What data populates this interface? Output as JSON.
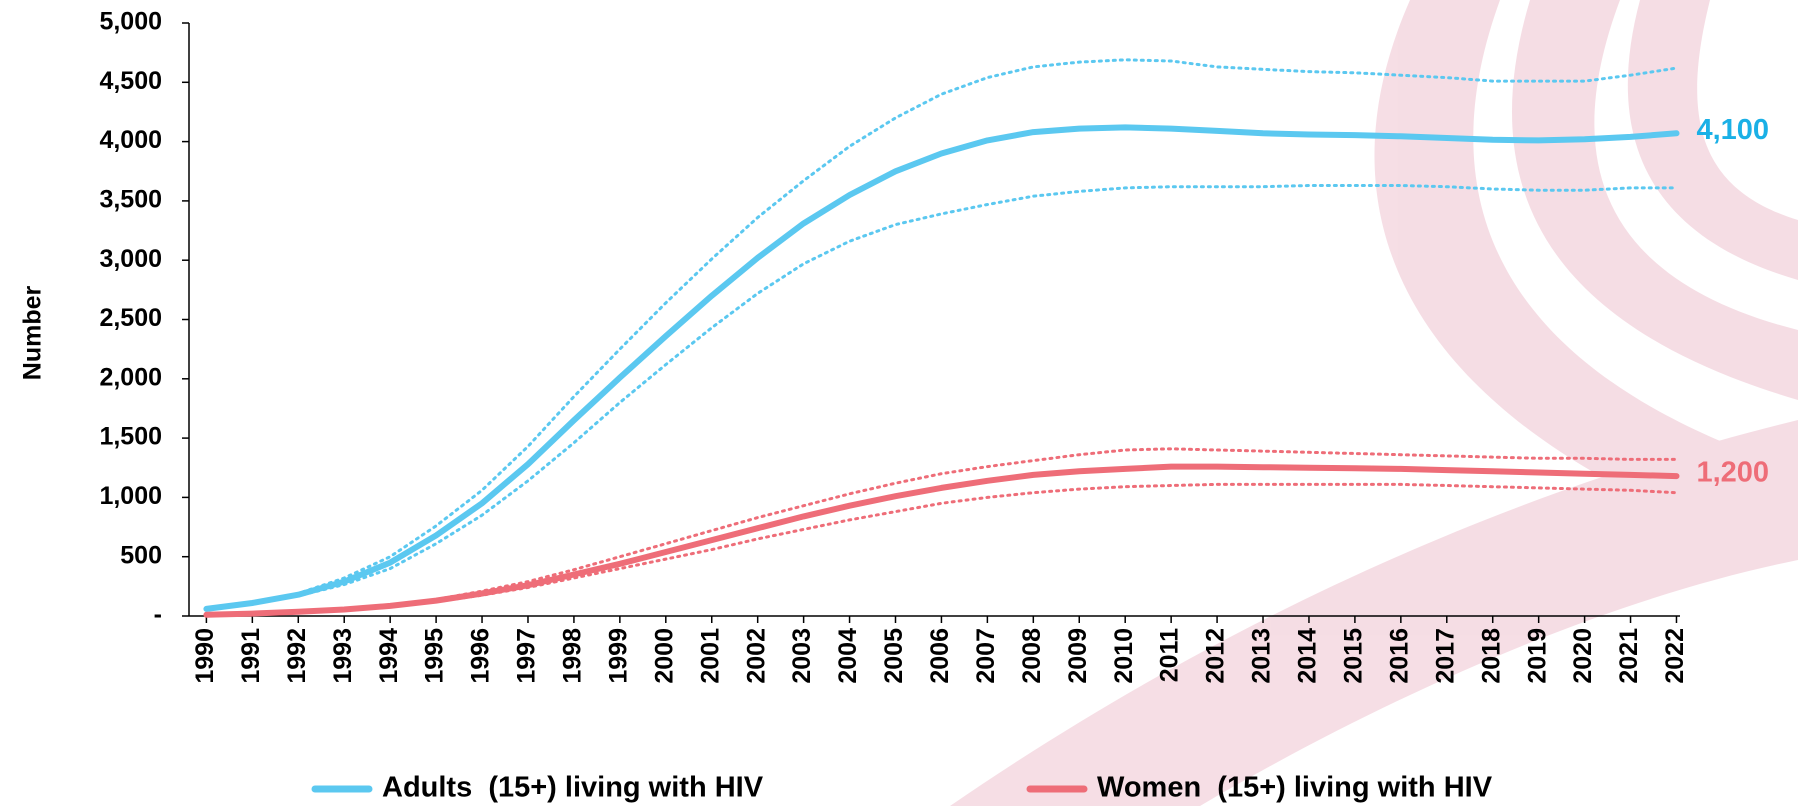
{
  "chart_data": {
    "type": "line",
    "y_label": "Number",
    "categories": [
      "1990",
      "1991",
      "1992",
      "1993",
      "1994",
      "1995",
      "1996",
      "1997",
      "1998",
      "1999",
      "2000",
      "2001",
      "2002",
      "2003",
      "2004",
      "2005",
      "2006",
      "2007",
      "2008",
      "2009",
      "2010",
      "2011",
      "2012",
      "2013",
      "2014",
      "2015",
      "2016",
      "2017",
      "2018",
      "2019",
      "2020",
      "2021",
      "2022"
    ],
    "series": [
      {
        "name": "Adults  (15+) living with HIV",
        "color": "#5bc8f0",
        "values": [
          60,
          110,
          180,
          290,
          450,
          680,
          950,
          1280,
          1650,
          2010,
          2360,
          2700,
          3020,
          3310,
          3550,
          3750,
          3900,
          4010,
          4080,
          4110,
          4120,
          4110,
          4090,
          4070,
          4060,
          4055,
          4045,
          4030,
          4015,
          4010,
          4020,
          4040,
          4070
        ],
        "upper": [
          60,
          115,
          190,
          320,
          500,
          760,
          1060,
          1430,
          1850,
          2250,
          2640,
          3010,
          3360,
          3670,
          3960,
          4200,
          4400,
          4540,
          4630,
          4670,
          4690,
          4680,
          4630,
          4610,
          4590,
          4580,
          4560,
          4540,
          4510,
          4510,
          4510,
          4560,
          4620
        ],
        "lower": [
          55,
          105,
          170,
          265,
          400,
          610,
          850,
          1140,
          1460,
          1800,
          2120,
          2430,
          2720,
          2970,
          3160,
          3300,
          3390,
          3470,
          3540,
          3580,
          3610,
          3620,
          3620,
          3620,
          3630,
          3630,
          3630,
          3620,
          3600,
          3590,
          3590,
          3610,
          3610
        ]
      },
      {
        "name": "Women  (15+) living with HIV",
        "color": "#ee6d78",
        "values": [
          10,
          20,
          35,
          55,
          85,
          130,
          190,
          260,
          350,
          440,
          540,
          640,
          740,
          840,
          930,
          1010,
          1080,
          1140,
          1190,
          1220,
          1240,
          1260,
          1260,
          1255,
          1250,
          1245,
          1240,
          1230,
          1220,
          1210,
          1200,
          1190,
          1180
        ],
        "upper": [
          10,
          20,
          35,
          60,
          90,
          140,
          210,
          290,
          390,
          500,
          610,
          720,
          830,
          930,
          1030,
          1120,
          1200,
          1260,
          1310,
          1360,
          1400,
          1410,
          1400,
          1390,
          1380,
          1370,
          1360,
          1350,
          1340,
          1330,
          1330,
          1320,
          1320
        ],
        "lower": [
          10,
          20,
          30,
          50,
          80,
          120,
          175,
          240,
          320,
          400,
          480,
          560,
          650,
          730,
          810,
          880,
          950,
          1000,
          1040,
          1070,
          1090,
          1100,
          1110,
          1110,
          1110,
          1110,
          1110,
          1100,
          1090,
          1080,
          1070,
          1060,
          1040
        ]
      }
    ],
    "annotations": [
      "4,100",
      "1,200"
    ],
    "annotation_colors": [
      "#1ab0e6",
      "#ee6d78"
    ],
    "ylim": [
      0,
      5000
    ],
    "yticks": [
      {
        "value": 0,
        "label": "-"
      },
      {
        "value": 500,
        "label": "500"
      },
      {
        "value": 1000,
        "label": "1,000"
      },
      {
        "value": 1500,
        "label": "1,500"
      },
      {
        "value": 2000,
        "label": "2,000"
      },
      {
        "value": 2500,
        "label": "2,500"
      },
      {
        "value": 3000,
        "label": "3,000"
      },
      {
        "value": 3500,
        "label": "3,500"
      },
      {
        "value": 4000,
        "label": "4,000"
      },
      {
        "value": 4500,
        "label": "4,500"
      },
      {
        "value": 5000,
        "label": "5,000"
      }
    ],
    "grid": false,
    "legend": "bottom"
  }
}
